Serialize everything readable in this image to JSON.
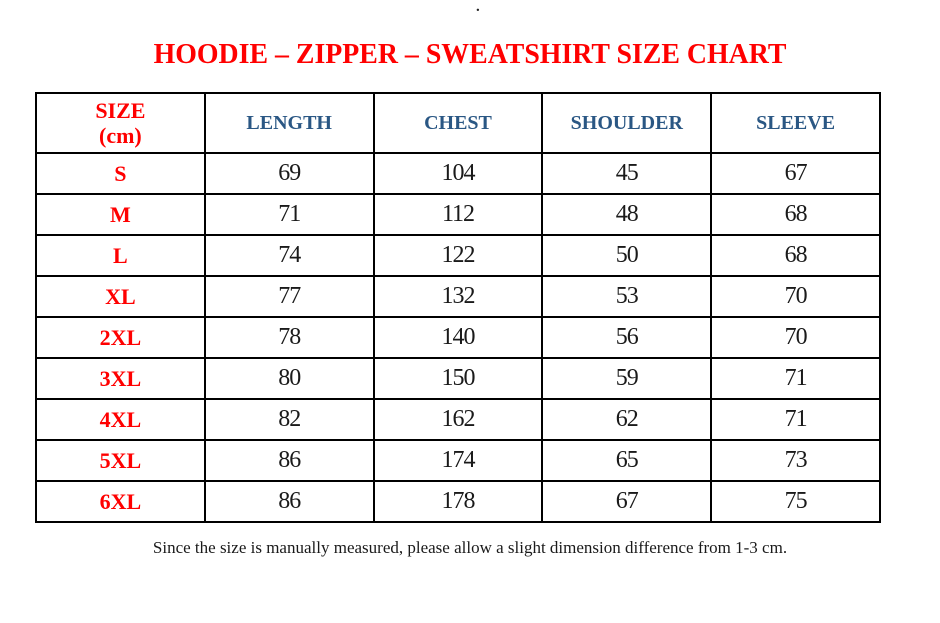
{
  "page": {
    "top_mark": ".",
    "title": "HOODIE – ZIPPER – SWEATSHIRT SIZE CHART",
    "footnote": "Since the size is manually measured, please allow a slight dimension difference from 1-3 cm."
  },
  "colors": {
    "title_red": "#FF0000",
    "size_column_red": "#FF0000",
    "header_blue": "#2A5784",
    "body_text": "#1A1A1A",
    "border": "#000000",
    "background": "#FFFFFF"
  },
  "table_header": {
    "size_line1": "SIZE",
    "size_line2": "(cm)",
    "length": "LENGTH",
    "chest": "CHEST",
    "shoulder": "SHOULDER",
    "sleeve": "SLEEVE"
  },
  "chart_data": {
    "type": "table",
    "title": "HOODIE – ZIPPER – SWEATSHIRT SIZE CHART",
    "unit": "cm",
    "columns": [
      "SIZE (cm)",
      "LENGTH",
      "CHEST",
      "SHOULDER",
      "SLEEVE"
    ],
    "rows": [
      [
        "S",
        69,
        104,
        45,
        67
      ],
      [
        "M",
        71,
        112,
        48,
        68
      ],
      [
        "L",
        74,
        122,
        50,
        68
      ],
      [
        "XL",
        77,
        132,
        53,
        70
      ],
      [
        "2XL",
        78,
        140,
        56,
        70
      ],
      [
        "3XL",
        80,
        150,
        59,
        71
      ],
      [
        "4XL",
        82,
        162,
        62,
        71
      ],
      [
        "5XL",
        86,
        174,
        65,
        73
      ],
      [
        "6XL",
        86,
        178,
        67,
        75
      ]
    ],
    "footnote": "Since the size is manually measured, please allow a slight dimension difference from 1-3 cm."
  }
}
